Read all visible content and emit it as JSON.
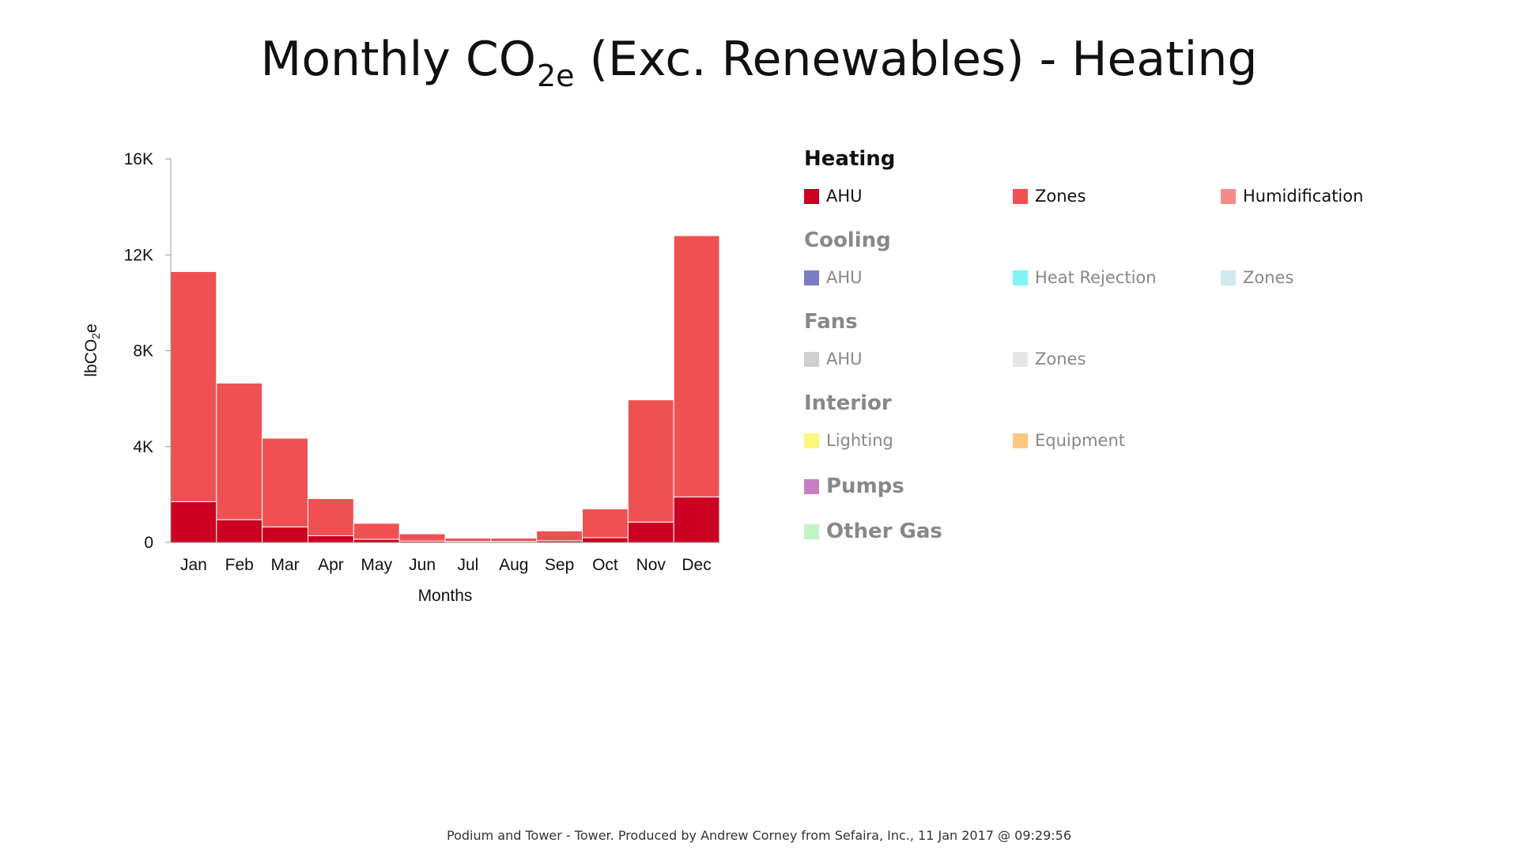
{
  "title": {
    "main": "Monthly CO",
    "sub": "2e",
    "rest": " (Exc. Renewables) - Heating"
  },
  "colors": {
    "heating_ahu": "#cc0020",
    "heating_zones": "#ef5152",
    "heating_humidification": "#f48c8c",
    "cooling_ahu": "#7b7bc6",
    "cooling_heat_rejection": "#7ff5f5",
    "cooling_zones": "#d3e8ef",
    "fans_ahu": "#cfcfcf",
    "fans_zones": "#e6e6e6",
    "interior_lighting": "#fbf87a",
    "interior_equipment": "#fbc87f",
    "pumps": "#c57fc2",
    "other_gas": "#c2f5c2"
  },
  "chart_data": {
    "type": "bar",
    "stacked": true,
    "categories": [
      "Jan",
      "Feb",
      "Mar",
      "Apr",
      "May",
      "Jun",
      "Jul",
      "Aug",
      "Sep",
      "Oct",
      "Nov",
      "Dec"
    ],
    "series": [
      {
        "name": "AHU",
        "color_key": "heating_ahu",
        "values": [
          1700,
          950,
          650,
          280,
          130,
          60,
          40,
          40,
          70,
          200,
          850,
          1900
        ]
      },
      {
        "name": "Zones",
        "color_key": "heating_zones",
        "values": [
          9600,
          5700,
          3700,
          1550,
          670,
          300,
          140,
          140,
          410,
          1200,
          5100,
          10900
        ]
      }
    ],
    "xlabel": "Months",
    "ylabel": {
      "main": "lbCO",
      "sub": "2",
      "rest": "e"
    },
    "ylim": [
      0,
      16000
    ],
    "yticks": [
      {
        "value": 0,
        "label": "0"
      },
      {
        "value": 4000,
        "label": "4K"
      },
      {
        "value": 8000,
        "label": "8K"
      },
      {
        "value": 12000,
        "label": "12K"
      },
      {
        "value": 16000,
        "label": "16K"
      }
    ],
    "grid": false,
    "legend_position": "right"
  },
  "legend": {
    "groups": [
      {
        "title": "Heating",
        "active": true,
        "items": [
          {
            "label": "AHU",
            "color_key": "heating_ahu"
          },
          {
            "label": "Zones",
            "color_key": "heating_zones"
          },
          {
            "label": "Humidification",
            "color_key": "heating_humidification"
          }
        ]
      },
      {
        "title": "Cooling",
        "active": false,
        "items": [
          {
            "label": "AHU",
            "color_key": "cooling_ahu"
          },
          {
            "label": "Heat Rejection",
            "color_key": "cooling_heat_rejection"
          },
          {
            "label": "Zones",
            "color_key": "cooling_zones"
          }
        ]
      },
      {
        "title": "Fans",
        "active": false,
        "items": [
          {
            "label": "AHU",
            "color_key": "fans_ahu"
          },
          {
            "label": "Zones",
            "color_key": "fans_zones"
          }
        ]
      },
      {
        "title": "Interior",
        "active": false,
        "items": [
          {
            "label": "Lighting",
            "color_key": "interior_lighting"
          },
          {
            "label": "Equipment",
            "color_key": "interior_equipment"
          }
        ]
      }
    ],
    "standalone": [
      {
        "label": "Pumps",
        "color_key": "pumps"
      },
      {
        "label": "Other Gas",
        "color_key": "other_gas"
      }
    ]
  },
  "footer": "Podium and Tower - Tower. Produced by Andrew Corney from Sefaira, Inc., 11 Jan 2017 @ 09:29:56"
}
